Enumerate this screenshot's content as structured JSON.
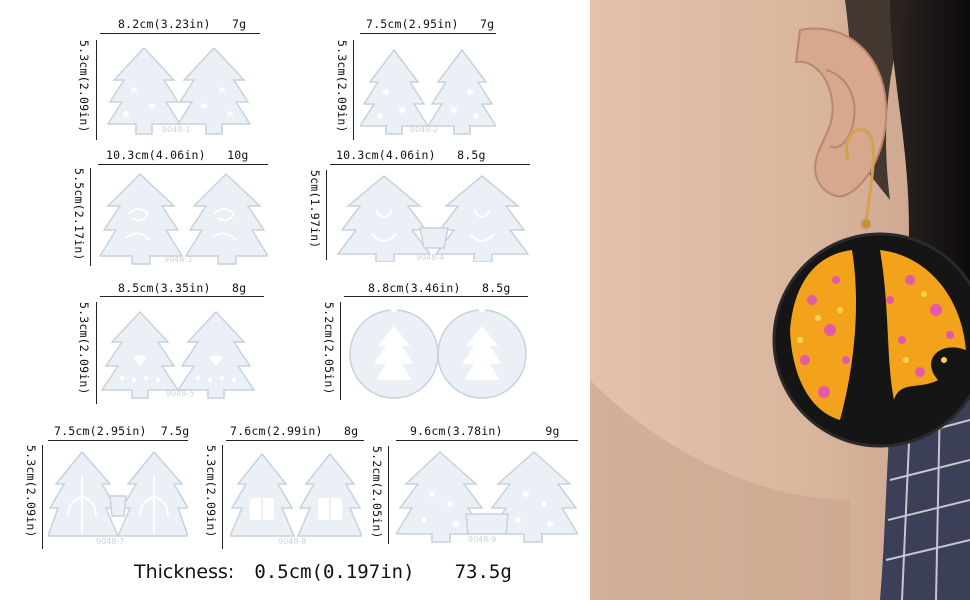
{
  "molds": [
    {
      "width_label": "8.2cm(3.23in)",
      "weight": "7g",
      "height_label": "5.3cm(2.09in)",
      "code": "9048-1"
    },
    {
      "width_label": "7.5cm(2.95in)",
      "weight": "7g",
      "height_label": "5.3cm(2.09in)",
      "code": "9048-2"
    },
    {
      "width_label": "10.3cm(4.06in)",
      "weight": "10g",
      "height_label": "5.5cm(2.17in)",
      "code": "9048-3"
    },
    {
      "width_label": "10.3cm(4.06in)",
      "weight": "8.5g",
      "height_label": "5cm(1.97in)",
      "code": "9048-4"
    },
    {
      "width_label": "8.5cm(3.35in)",
      "weight": "8g",
      "height_label": "5.3cm(2.09in)",
      "code": "9048-5"
    },
    {
      "width_label": "8.8cm(3.46in)",
      "weight": "8.5g",
      "height_label": "5.2cm(2.05in)",
      "code": "9048-6"
    },
    {
      "width_label": "7.5cm(2.95in)",
      "weight": "7.5g",
      "height_label": "5.3cm(2.09in)",
      "code": "9048-7"
    },
    {
      "width_label": "7.6cm(2.99in)",
      "weight": "8g",
      "height_label": "5.3cm(2.09in)",
      "code": "9048-8"
    },
    {
      "width_label": "9.6cm(3.78in)",
      "weight": "9g",
      "height_label": "5.2cm(2.05in)",
      "code": "9048-9"
    }
  ],
  "footer": {
    "thickness_label": "Thickness:",
    "thickness_value": "0.5cm(0.197in)",
    "total_weight": "73.5g"
  },
  "colors": {
    "mold_fill": "#eaf0f5",
    "mold_stroke": "#c7d2dc",
    "resin_black": "#151515",
    "glitter_orange": "#f3a21c",
    "glitter_pink": "#e25aa8"
  }
}
